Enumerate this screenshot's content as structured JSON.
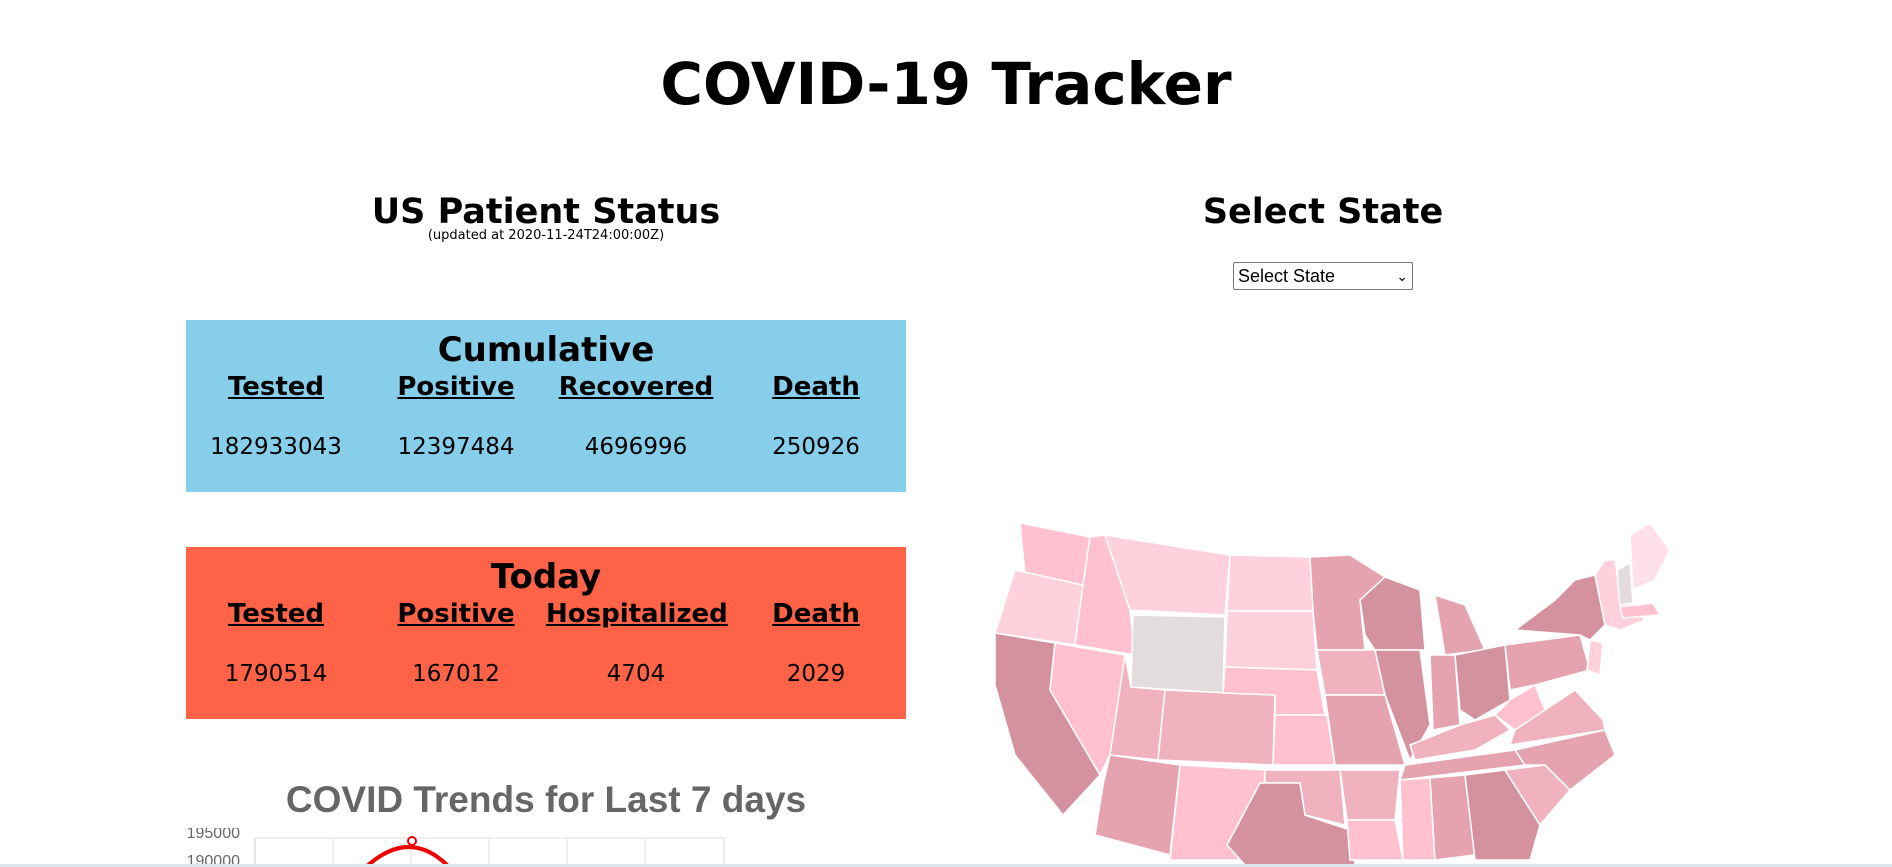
{
  "page": {
    "title": "COVID-19 Tracker"
  },
  "patient_status": {
    "title": "US Patient Status",
    "updated": "(updated at 2020-11-24T24:00:00Z)"
  },
  "cumulative": {
    "title": "Cumulative",
    "color": "#87ceeb",
    "columns": [
      {
        "label": "Tested",
        "value": "182933043"
      },
      {
        "label": "Positive",
        "value": "12397484"
      },
      {
        "label": "Recovered",
        "value": "4696996"
      },
      {
        "label": "Death",
        "value": "250926"
      }
    ]
  },
  "today": {
    "title": "Today",
    "color": "#ff6347",
    "columns": [
      {
        "label": "Tested",
        "value": "1790514"
      },
      {
        "label": "Positive",
        "value": "167012"
      },
      {
        "label": "Hospitalized",
        "value": "4704"
      },
      {
        "label": "Death",
        "value": "2029"
      }
    ]
  },
  "trends": {
    "title": "COVID Trends for Last 7 days",
    "y_ticks": [
      "195000",
      "190000"
    ]
  },
  "state_selector": {
    "title": "Select State",
    "selected": "Select State",
    "icon": "chevron-down-icon"
  },
  "map": {
    "icon": "us-states-choropleth",
    "colors": [
      "#ffd1dc",
      "#ffc1cf",
      "#f0b2be",
      "#e5a3b0",
      "#d4929f",
      "#e3dcdc"
    ]
  }
}
